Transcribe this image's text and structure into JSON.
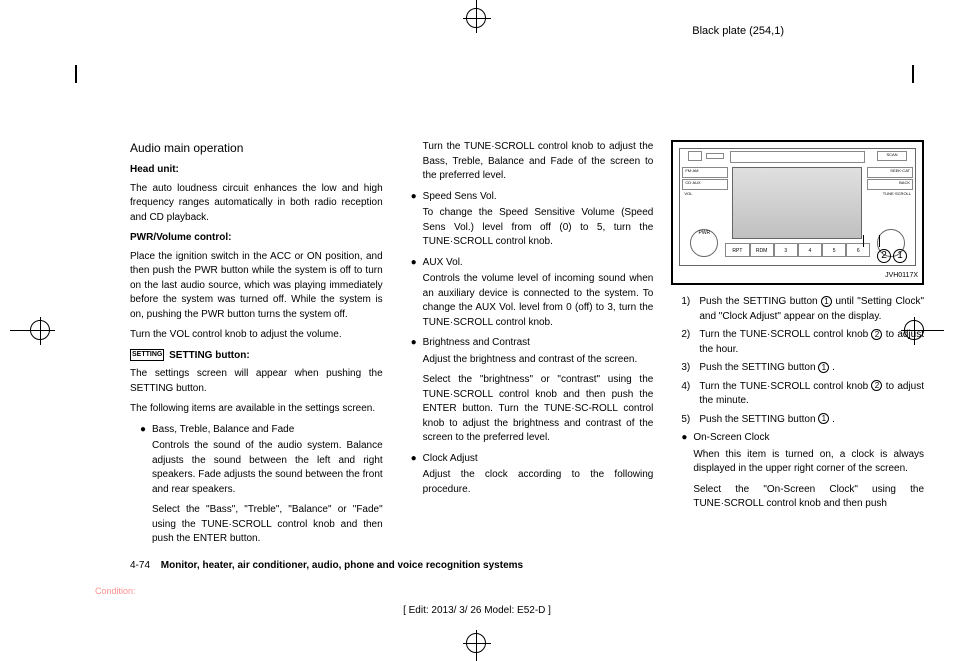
{
  "header": {
    "plate": "Black plate (254,1)"
  },
  "col1": {
    "h2": "Audio main operation",
    "head_unit_h": "Head unit:",
    "head_unit_p": "The auto loudness circuit enhances the low and high frequency ranges automatically in both radio reception and CD playback.",
    "pwr_h": "PWR/Volume control:",
    "pwr_p1": "Place the ignition switch in the ACC or ON position, and then push the PWR button while the system is off to turn on the last audio source, which was playing immediately before the system was turned off. While the system is on, pushing the PWR button turns the system off.",
    "pwr_p2": "Turn the VOL control knob to adjust the volume.",
    "setting_badge": "SETTING",
    "setting_h": "SETTING button:",
    "setting_p1": "The settings screen will appear when pushing the SETTING button.",
    "setting_p2": "The following items are available in the settings screen.",
    "b1": "Bass, Treble, Balance and Fade",
    "b1_sub1": "Controls the sound of the audio system. Balance adjusts the sound between the left and right speakers. Fade adjusts the sound between the front and rear speakers.",
    "b1_sub2": "Select the \"Bass\", \"Treble\", \"Balance\" or \"Fade\" using the TUNE·SCROLL control knob and then push the ENTER button."
  },
  "col2": {
    "p0": "Turn the TUNE·SCROLL control knob to adjust the Bass, Treble, Balance and Fade of the screen to the preferred level.",
    "b2": "Speed Sens Vol.",
    "b2_sub": "To change the Speed Sensitive Volume (Speed Sens Vol.) level from off (0) to 5, turn the TUNE·SCROLL control knob.",
    "b3": "AUX Vol.",
    "b3_sub": "Controls the volume level of incoming sound when an auxiliary device is connected to the system. To change the AUX Vol. level from 0 (off) to 3, turn the TUNE·SCROLL control knob.",
    "b4": "Brightness and Contrast",
    "b4_sub1": "Adjust the brightness and contrast of the screen.",
    "b4_sub2": "Select the \"brightness\" or \"contrast\" using the TUNE·SCROLL control knob and then push the ENTER button. Turn the TUNE·SC-ROLL control knob to adjust the brightness and contrast of the screen to the preferred level.",
    "b5": "Clock Adjust",
    "b5_sub": "Adjust the clock according to the following procedure."
  },
  "col3": {
    "diagram_label": "JVH0117X",
    "scan": "SCAN",
    "btn_fm": "FM·AM",
    "btn_cd": "CD·AUX",
    "btn_disp": "DISP",
    "btn_vol": "VOL",
    "btn_pwr": "PWR",
    "btn_seek": "SEEK·CAT",
    "btn_menu": "MENU",
    "btn_back": "BACK",
    "btn_tune": "TUNE·SCROLL",
    "p1": "RPT",
    "p2": "RDM",
    "s1_pre": "Push the SETTING button ",
    "s1_post": " until \"Setting Clock\" and \"Clock Adjust\" appear on the display.",
    "s2_pre": "Turn the TUNE·SCROLL control knob ",
    "s2_post": " to adjust the hour.",
    "s3_pre": "Push the SETTING button ",
    "s3_post": " .",
    "s4_pre": "Turn the TUNE·SCROLL control knob ",
    "s4_post": " to adjust the minute.",
    "s5_pre": "Push the SETTING button ",
    "s5_post": " .",
    "b6": "On-Screen Clock",
    "b6_sub1": "When this item is turned on, a clock is always displayed in the upper right corner of the screen.",
    "b6_sub2": "Select the \"On-Screen Clock\" using the TUNE·SCROLL control knob and then push"
  },
  "footer": {
    "page": "4-74",
    "title": "Monitor, heater, air conditioner, audio, phone and voice recognition systems",
    "edit": "[ Edit: 2013/ 3/ 26  Model: E52-D ]",
    "condition": "Condition:"
  }
}
